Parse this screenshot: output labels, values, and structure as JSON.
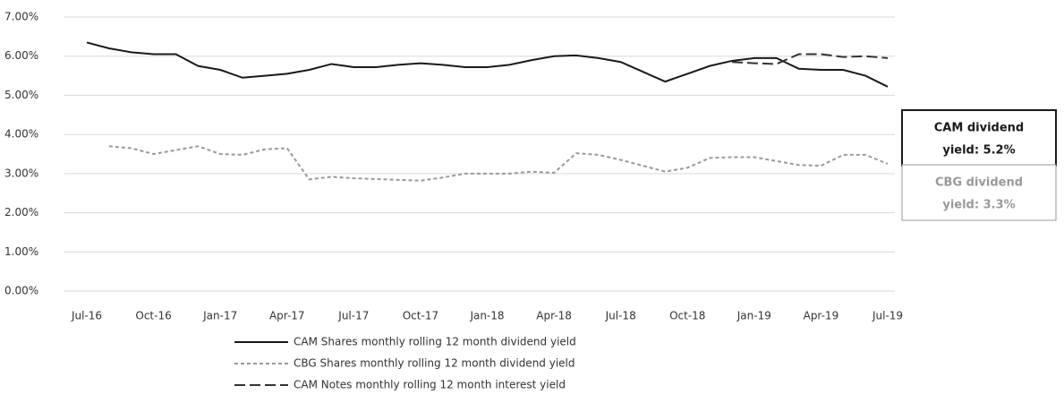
{
  "chart_data": {
    "type": "line",
    "categories": [
      "Jul-16",
      null,
      null,
      "Oct-16",
      null,
      null,
      "Jan-17",
      null,
      null,
      "Apr-17",
      null,
      null,
      "Jul-17",
      null,
      null,
      "Oct-17",
      null,
      null,
      "Jan-18",
      null,
      null,
      "Apr-18",
      null,
      null,
      "Jul-18",
      null,
      null,
      "Oct-18",
      null,
      null,
      "Jan-19",
      null,
      null,
      "Apr-19",
      null,
      null,
      "Jul-19"
    ],
    "ylim": [
      0,
      7
    ],
    "yticks": [
      {
        "value": 0,
        "label": "0.00%"
      },
      {
        "value": 1,
        "label": "1.00%"
      },
      {
        "value": 2,
        "label": "2.00%"
      },
      {
        "value": 3,
        "label": "3.00%"
      },
      {
        "value": 4,
        "label": "4.00%"
      },
      {
        "value": 5,
        "label": "5.00%"
      },
      {
        "value": 6,
        "label": "6.00%"
      },
      {
        "value": 7,
        "label": "7.00%"
      }
    ],
    "grid": true,
    "legend": "bottom",
    "series": [
      {
        "name": "CAM Shares monthly rolling 12 month dividend yield",
        "color": "#1a1a1a",
        "dash": "solid",
        "values": [
          6.35,
          6.2,
          6.1,
          6.05,
          6.05,
          5.75,
          5.65,
          5.45,
          5.5,
          5.55,
          5.65,
          5.8,
          5.72,
          5.72,
          5.78,
          5.82,
          5.78,
          5.72,
          5.72,
          5.78,
          5.9,
          6.0,
          6.02,
          5.95,
          5.85,
          5.6,
          5.35,
          5.55,
          5.75,
          5.88,
          5.95,
          5.95,
          5.68,
          5.65,
          5.65,
          5.5,
          5.22
        ]
      },
      {
        "name": "CBG Shares monthly rolling 12 month dividend yield",
        "color": "#999999",
        "dash": "short-dash",
        "values": [
          null,
          3.7,
          3.65,
          3.5,
          3.6,
          3.7,
          3.5,
          3.48,
          3.62,
          3.65,
          2.85,
          2.92,
          2.88,
          2.86,
          2.84,
          2.82,
          2.9,
          3.0,
          3.0,
          3.0,
          3.05,
          3.02,
          3.52,
          3.48,
          3.35,
          3.2,
          3.05,
          3.15,
          3.4,
          3.42,
          3.42,
          3.32,
          3.22,
          3.2,
          3.48,
          3.48,
          3.25
        ]
      },
      {
        "name": "CAM Notes monthly rolling 12 month interest yield",
        "color": "#333333",
        "dash": "long-dash",
        "values": [
          null,
          null,
          null,
          null,
          null,
          null,
          null,
          null,
          null,
          null,
          null,
          null,
          null,
          null,
          null,
          null,
          null,
          null,
          null,
          null,
          null,
          null,
          null,
          null,
          null,
          null,
          null,
          null,
          null,
          5.85,
          5.82,
          5.8,
          6.05,
          6.05,
          5.98,
          6.0,
          5.95
        ]
      }
    ],
    "annotations": [
      {
        "lines": [
          "CAM dividend",
          "yield: 5.2%"
        ],
        "color": "#1a1a1a"
      },
      {
        "lines": [
          "CBG dividend",
          "yield: 3.3%"
        ],
        "color": "#999999"
      }
    ]
  }
}
